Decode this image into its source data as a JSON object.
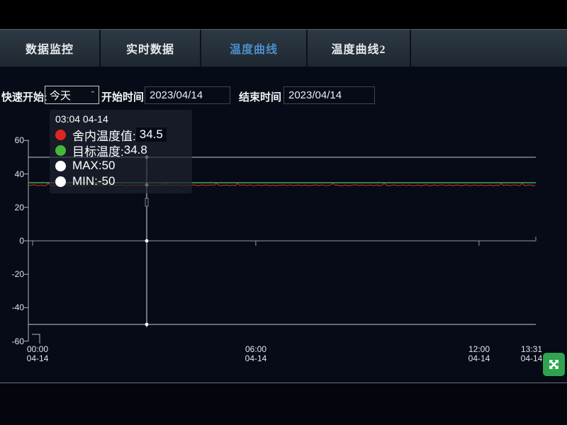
{
  "app": {
    "background": "#070b17",
    "frame_background": "#000000",
    "accent_blue": "#4d8dc8",
    "button_green": "#2fa34f"
  },
  "tabbar": {
    "tabs": [
      {
        "label": "数据监控",
        "active": false
      },
      {
        "label": "实时数据",
        "active": false
      },
      {
        "label": "温度曲线",
        "active": true
      },
      {
        "label": "温度曲线2",
        "active": false
      }
    ]
  },
  "filters": {
    "quick_start_label": "快速开始:",
    "quick_start_value": "今天",
    "quick_start_icon": "chevron-down-icon",
    "start_label": "开始时间",
    "start_value": "2023/04/14",
    "end_label": "结束时间",
    "end_value": "2023/04/14"
  },
  "tooltip": {
    "title": "03:04 04-14",
    "rows": [
      {
        "dot_color": "#e02622",
        "label": "舍内温度值: ",
        "value": "34.5",
        "value_chip": true
      },
      {
        "dot_color": "#44b83e",
        "label": "目标温度:",
        "value": "34.8",
        "value_chip": false
      },
      {
        "dot_color": "#ffffff",
        "label": "MAX:",
        "value": "50",
        "value_chip": false
      },
      {
        "dot_color": "#ffffff",
        "label": "MIN:",
        "value": "-50",
        "value_chip": false
      }
    ]
  },
  "chart_data": {
    "type": "line",
    "title": "",
    "xlabel": "",
    "ylabel": "",
    "x_axis": {
      "kind": "time",
      "ticks": [
        {
          "time": "00:00",
          "date": "04-14",
          "hours": 0
        },
        {
          "time": "06:00",
          "date": "04-14",
          "hours": 6
        },
        {
          "time": "12:00",
          "date": "04-14",
          "hours": 12
        },
        {
          "time": "13:31",
          "date": "04-14",
          "hours": 13.52
        }
      ],
      "range_hours": [
        0,
        13.52
      ]
    },
    "y_axis": {
      "ticks": [
        60,
        40,
        20,
        0,
        -20,
        -40,
        -60
      ],
      "range": [
        -60,
        60
      ],
      "gridlines_at": [
        50,
        0,
        -50
      ]
    },
    "series": [
      {
        "name": "舍内温度值",
        "color": "#c62f28",
        "value_constant": 34.5,
        "style": "noisy-flat"
      },
      {
        "name": "目标温度",
        "color": "#3fa044",
        "value_constant": 34.8,
        "style": "flat"
      },
      {
        "name": "MAX",
        "color": "#c6cbd3",
        "value_constant": 50,
        "style": "flat"
      },
      {
        "name": "MIN",
        "color": "#c6cbd3",
        "value_constant": -50,
        "style": "flat"
      }
    ],
    "crosshair": {
      "time": "03:04 04-14",
      "hours": 3.067,
      "values": {
        "indoor": 34.5,
        "target": 34.8,
        "max": 50,
        "min": -50
      }
    },
    "legend_position": "tooltip-overlay",
    "grid": "horizontal-only"
  },
  "footer": {
    "expand_button_icon": "expand-icon"
  }
}
